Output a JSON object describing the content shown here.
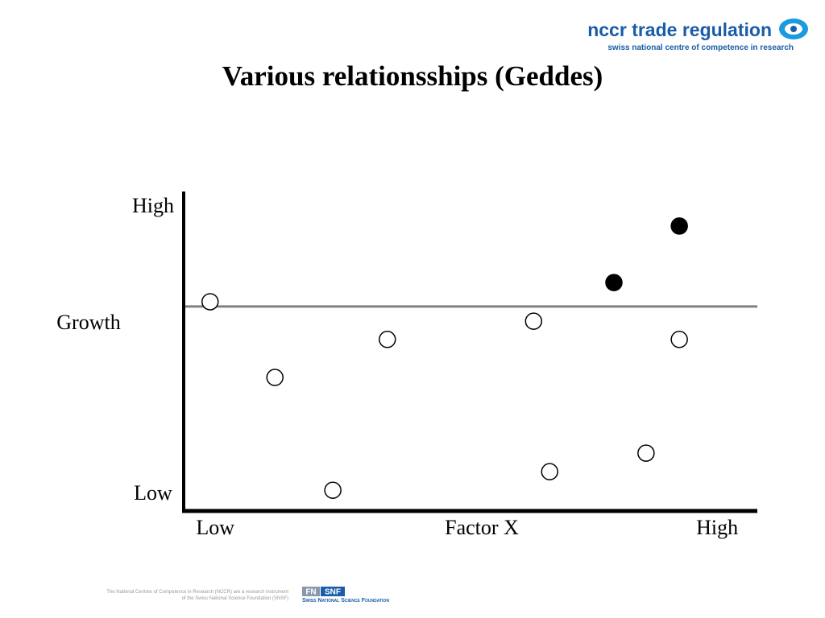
{
  "header": {
    "logo_name": "nccr trade regulation",
    "logo_tagline": "swiss national centre of competence in research"
  },
  "chart_data": {
    "type": "scatter",
    "title": "Various relationsships (Geddes)",
    "x_label": "Factor X",
    "y_label": "Growth",
    "xlim": [
      0,
      100
    ],
    "ylim": [
      0,
      100
    ],
    "xticks": [
      {
        "value": 5.5,
        "label": "Low"
      },
      {
        "value": 93,
        "label": "High"
      }
    ],
    "yticks": [
      {
        "value": 5,
        "label": "Low"
      },
      {
        "value": 95,
        "label": "High"
      }
    ],
    "hline": 64,
    "hline_color": "#808080",
    "series": [
      {
        "color": "#000000",
        "filled": false,
        "x": [
          4.6,
          15.9,
          26,
          35.5,
          61,
          63.8,
          80.6,
          86.4
        ],
        "values": [
          65.5,
          41.8,
          6.5,
          53.7,
          59.4,
          12.3,
          18.1,
          53.7
        ]
      },
      {
        "color": "#000000",
        "filled": true,
        "x": [
          75,
          86.4
        ],
        "values": [
          71.5,
          89.2
        ]
      }
    ]
  },
  "footer": {
    "note_lines": [
      "The National Centres of Competence in Research (NCCR) are a research instrument",
      "of the Swiss National Science Foundation (SNSF)"
    ],
    "fn_logo": "FN",
    "snf_logo": "SNF",
    "foundation": "Swiss National Science Foundation"
  }
}
